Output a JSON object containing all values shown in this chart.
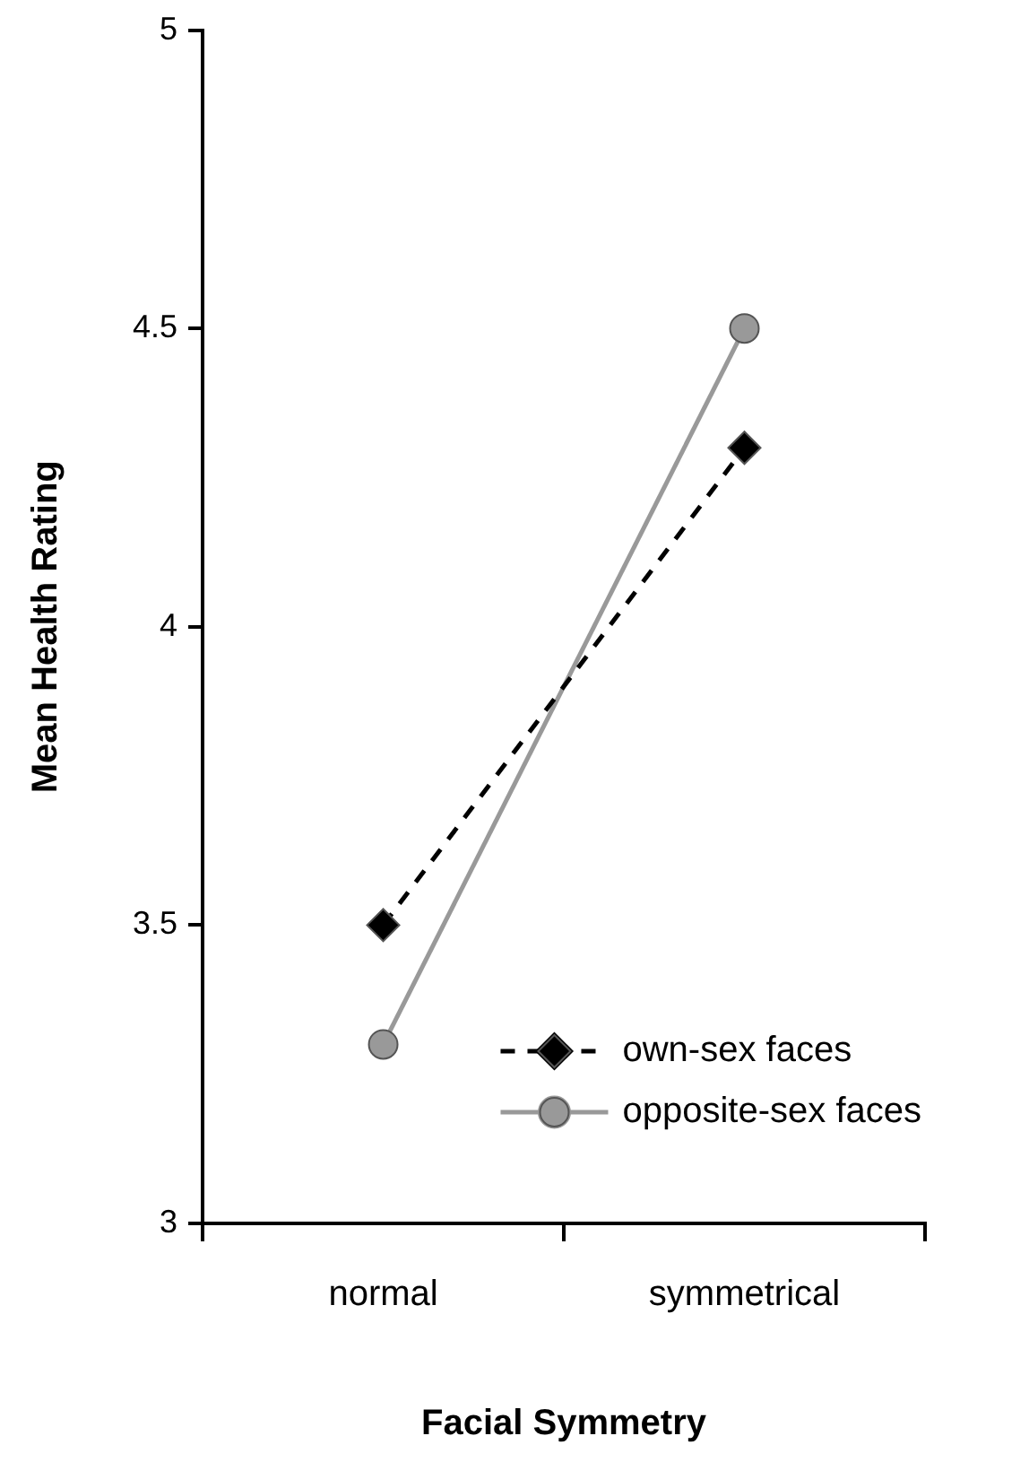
{
  "chart_data": {
    "type": "line",
    "xlabel": "Facial Symmetry",
    "ylabel": "Mean Health Rating",
    "categories": [
      "normal",
      "symmetrical"
    ],
    "series": [
      {
        "name": "own-sex faces",
        "color": "#000000",
        "values": [
          3.5,
          4.3
        ],
        "marker": "diamond",
        "line_style": "dashed"
      },
      {
        "name": "opposite-sex faces",
        "color": "#999999",
        "values": [
          3.3,
          4.5
        ],
        "marker": "circle",
        "line_style": "solid"
      }
    ],
    "ylim": [
      3,
      5
    ],
    "yticks": [
      3,
      3.5,
      4,
      4.5,
      5
    ],
    "grid": false,
    "legend": "bottom right"
  }
}
